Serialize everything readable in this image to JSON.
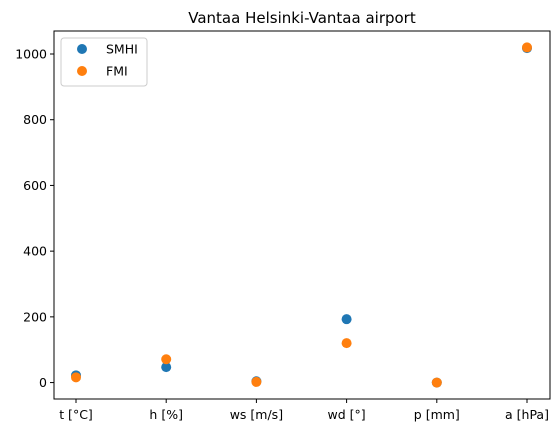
{
  "chart_data": {
    "type": "scatter",
    "title": "Vantaa Helsinki-Vantaa airport",
    "xlabel": "",
    "ylabel": "",
    "categories": [
      "t [°C]",
      "h [%]",
      "ws [m/s]",
      "wd [°]",
      "p [mm]",
      "a [hPa]"
    ],
    "ylim": [
      -50,
      1070
    ],
    "yticks": [
      0,
      200,
      400,
      600,
      800,
      1000
    ],
    "grid": false,
    "legend_position": "top-left",
    "series": [
      {
        "name": "SMHI",
        "color": "#1f77b4",
        "values": [
          22,
          47,
          4,
          193,
          0,
          1018
        ]
      },
      {
        "name": "FMI",
        "color": "#ff7f0e",
        "values": [
          16,
          71,
          2,
          120,
          0,
          1020
        ]
      }
    ]
  }
}
